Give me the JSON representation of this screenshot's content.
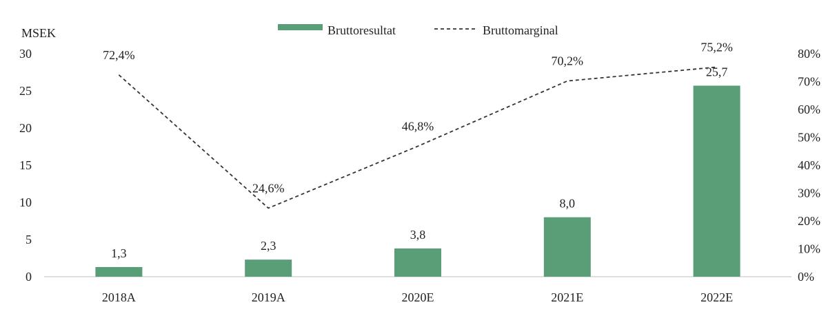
{
  "chart_data": {
    "type": "bar",
    "categories": [
      "2018A",
      "2019A",
      "2020E",
      "2021E",
      "2022E"
    ],
    "y_unit_label": "MSEK",
    "left_axis": {
      "min": 0,
      "max": 30,
      "step": 5,
      "tick_labels": [
        "0",
        "5",
        "10",
        "15",
        "20",
        "25",
        "30"
      ]
    },
    "right_axis": {
      "min": 0,
      "max": 0.8,
      "step": 0.1,
      "tick_labels": [
        "0%",
        "10%",
        "20%",
        "30%",
        "40%",
        "50%",
        "60%",
        "70%",
        "80%"
      ]
    },
    "series": [
      {
        "name": "Bruttoresultat",
        "kind": "bar",
        "axis": "left",
        "color": "#5a9e78",
        "values": [
          1.3,
          2.3,
          3.8,
          8.0,
          25.7
        ],
        "labels": [
          "1,3",
          "2,3",
          "3,8",
          "8,0",
          "25,7"
        ]
      },
      {
        "name": "Bruttomarginal",
        "kind": "line",
        "axis": "right",
        "color": "#333333",
        "line_style": "dashed",
        "values": [
          0.724,
          0.246,
          0.468,
          0.702,
          0.752
        ],
        "labels": [
          "72,4%",
          "24,6%",
          "46,8%",
          "70,2%",
          "75,2%"
        ]
      }
    ],
    "legend_position": "top-center",
    "grid": false
  }
}
